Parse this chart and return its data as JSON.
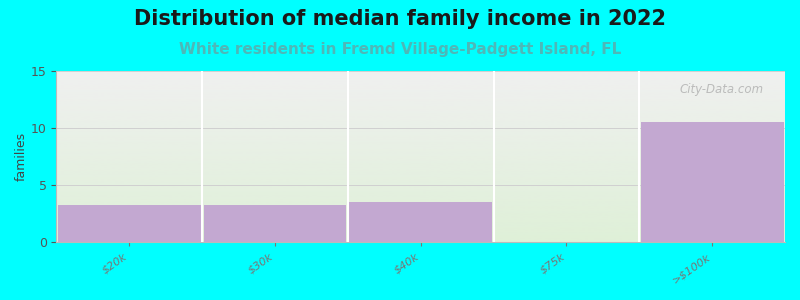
{
  "title": "Distribution of median family income in 2022",
  "subtitle": "White residents in Fremd Village-Padgett Island, FL",
  "ylabel": "families",
  "categories": [
    "$20k",
    "$30k",
    "$40k",
    "$75k",
    ">$100k"
  ],
  "values": [
    3.3,
    3.3,
    3.5,
    0,
    10.5
  ],
  "bar_color": "#c3a8d1",
  "background_color": "#00ffff",
  "bg_color_bottom": "#dff0d8",
  "bg_color_top": "#f0f0f0",
  "ylim": [
    0,
    15
  ],
  "yticks": [
    0,
    5,
    10,
    15
  ],
  "grid_color": "#d0d0d0",
  "title_fontsize": 15,
  "subtitle_fontsize": 11,
  "subtitle_color": "#4db8b8",
  "ylabel_fontsize": 9,
  "tick_fontsize": 8,
  "watermark": "City-Data.com"
}
